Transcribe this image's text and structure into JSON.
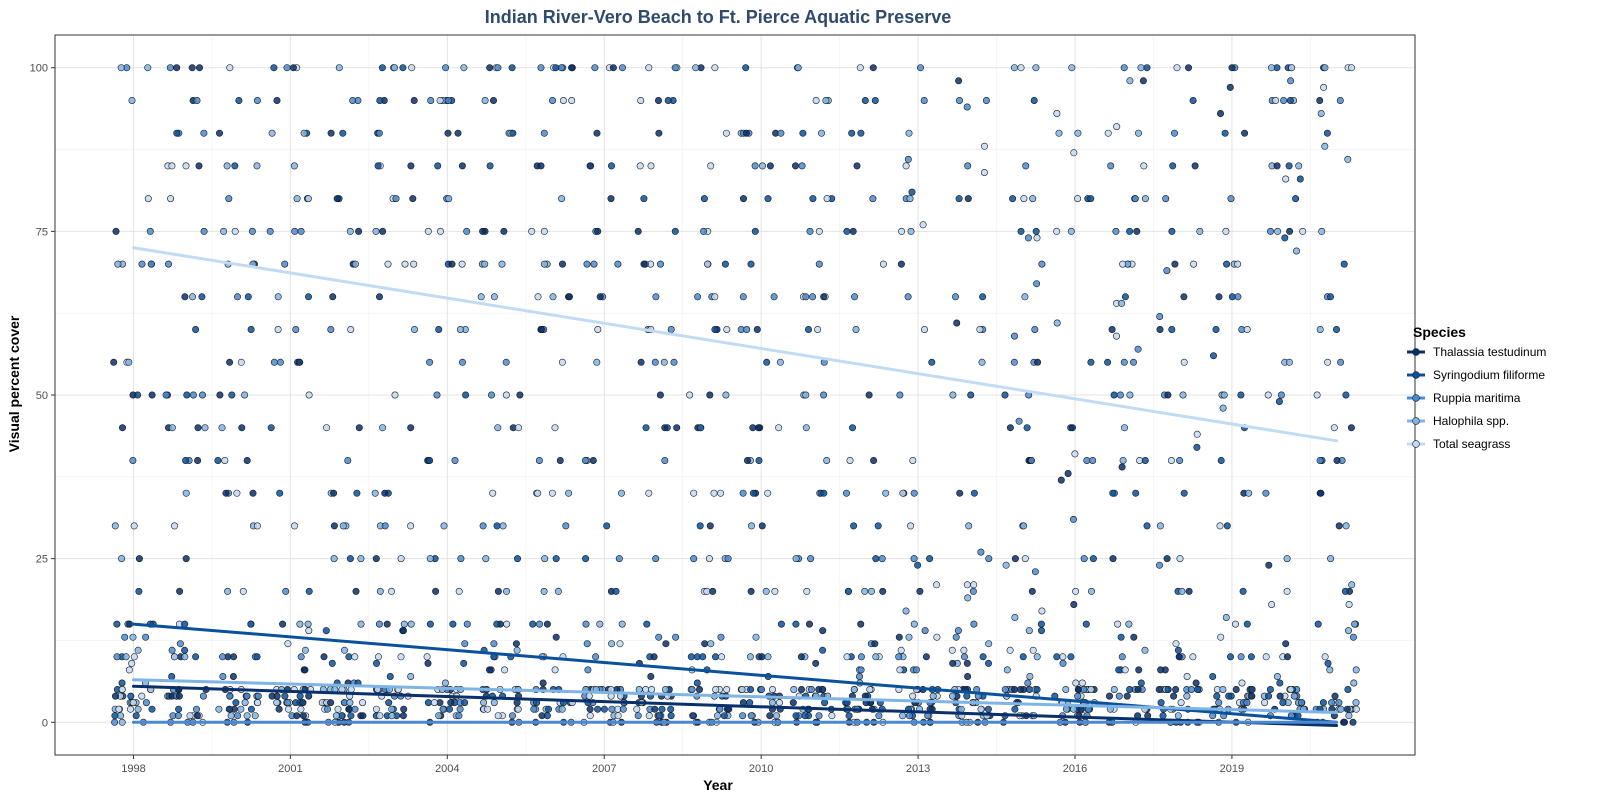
{
  "chart_data": {
    "type": "scatter",
    "title": "Indian River-Vero Beach to Ft. Pierce Aquatic Preserve",
    "xlabel": "Year",
    "ylabel": "Visual percent cover",
    "xlim": [
      1996.5,
      2022.5
    ],
    "ylim": [
      -5,
      105
    ],
    "x_ticks": [
      1998,
      2001,
      2004,
      2007,
      2010,
      2013,
      2016,
      2019
    ],
    "x_tick_labels": [
      "1998",
      "2001",
      "2004",
      "2007",
      "2010",
      "2013",
      "2016",
      "2019"
    ],
    "y_ticks": [
      0,
      25,
      50,
      75,
      100
    ],
    "y_tick_labels": [
      "0",
      "25",
      "50",
      "75",
      "100"
    ],
    "grid": true,
    "legend": {
      "title": "Species",
      "position": "right",
      "entries": [
        {
          "label": "Thalassia testudinum",
          "color": "#08306b"
        },
        {
          "label": "Syringodium filiforme",
          "color": "#08519c"
        },
        {
          "label": "Ruppia maritima",
          "color": "#4a89d0"
        },
        {
          "label": "Halophila spp.",
          "color": "#7eb4e6"
        },
        {
          "label": "Total seagrass",
          "color": "#c2dbf5"
        }
      ]
    },
    "survey_years": [
      1998,
      1999,
      2000,
      2001,
      2002,
      2003,
      2004,
      2005,
      2006,
      2007,
      2008,
      2009,
      2010,
      2011,
      2012,
      2013,
      2014,
      2015,
      2016,
      2017,
      2018,
      2019,
      2020,
      2021
    ],
    "series": [
      {
        "name": "Thalassia testudinum",
        "trend": {
          "x": [
            1998,
            2021
          ],
          "y": [
            5.5,
            -0.5
          ]
        }
      },
      {
        "name": "Syringodium filiforme",
        "trend": {
          "x": [
            1998,
            2021
          ],
          "y": [
            15,
            0
          ]
        }
      },
      {
        "name": "Ruppia maritima",
        "trend": {
          "x": [
            1998,
            2021
          ],
          "y": [
            0,
            0
          ]
        }
      },
      {
        "name": "Halophila spp.",
        "trend": {
          "x": [
            1998,
            2021
          ],
          "y": [
            6.5,
            1.5
          ]
        }
      },
      {
        "name": "Total seagrass",
        "trend": {
          "x": [
            1998,
            2021
          ],
          "y": [
            72.5,
            43
          ]
        }
      }
    ]
  }
}
